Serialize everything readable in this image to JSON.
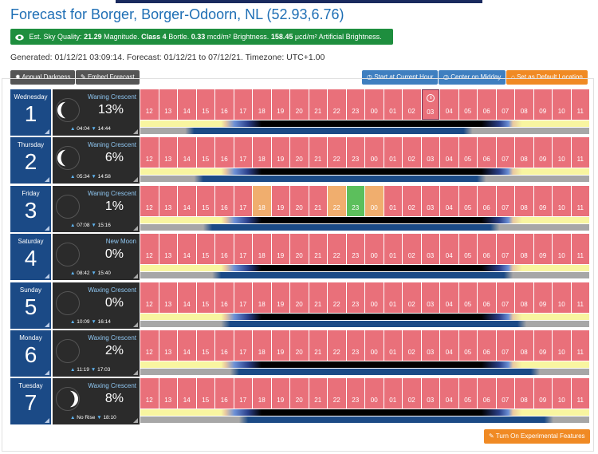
{
  "title": "Forecast for Borger, Borger-Odoorn, NL (52.93,6.76)",
  "sky_quality": {
    "icon": "eye-icon",
    "label": "Est. Sky Quality:",
    "magnitude_value": "21.29",
    "magnitude_unit": "Magnitude.",
    "bortle": "Class 4",
    "bortle_unit": "Bortle.",
    "brightness_value": "0.33",
    "brightness_unit": "mcd/m² Brightness.",
    "artificial_value": "158.45",
    "artificial_unit": "μcd/m² Artificial Brightness."
  },
  "generated": "Generated: 01/12/21 03:09:14. Forecast: 01/12/21 to 07/12/21. Timezone: UTC+1.00",
  "buttons": {
    "annual_darkness": "Annual Darkness",
    "embed_forecast": "Embed Forecast",
    "start_current_hour": "Start at Current Hour",
    "center_midday": "Center on Midday",
    "set_default": "Set as Default Location",
    "experimental": "Turn On Experimental Features"
  },
  "hours": [
    "12",
    "13",
    "14",
    "15",
    "16",
    "17",
    "18",
    "19",
    "20",
    "21",
    "22",
    "23",
    "00",
    "01",
    "02",
    "03",
    "04",
    "05",
    "06",
    "07",
    "08",
    "09",
    "10",
    "11"
  ],
  "current_hour_label": "03",
  "colors": {
    "bad": "#e9707a",
    "fair": "#f0ae6e",
    "good": "#5cbf5c",
    "date_bg": "#1b4a86",
    "moon_bg": "#2b2b2b",
    "title": "#1f6fb5"
  },
  "days": [
    {
      "name": "Wednesday",
      "num": "1",
      "phase": "Waning Crescent",
      "pct": "13%",
      "rise": "04:04",
      "set": "14:44",
      "moon_shape": "waning-crescent",
      "current_index": 15,
      "special": {}
    },
    {
      "name": "Thursday",
      "num": "2",
      "phase": "Waning Crescent",
      "pct": "6%",
      "rise": "05:34",
      "set": "14:58",
      "moon_shape": "waning-crescent",
      "current_index": -1,
      "special": {}
    },
    {
      "name": "Friday",
      "num": "3",
      "phase": "Waning Crescent",
      "pct": "1%",
      "rise": "07:08",
      "set": "15:16",
      "moon_shape": "new",
      "current_index": -1,
      "special": {
        "6": "orange",
        "10": "orange",
        "11": "green",
        "12": "orange"
      }
    },
    {
      "name": "Saturday",
      "num": "4",
      "phase": "New Moon",
      "pct": "0%",
      "rise": "08:42",
      "set": "15:40",
      "moon_shape": "new",
      "current_index": -1,
      "special": {}
    },
    {
      "name": "Sunday",
      "num": "5",
      "phase": "Waxing Crescent",
      "pct": "0%",
      "rise": "10:09",
      "set": "16:14",
      "moon_shape": "new",
      "current_index": -1,
      "special": {}
    },
    {
      "name": "Monday",
      "num": "6",
      "phase": "Waxing Crescent",
      "pct": "2%",
      "rise": "11:19",
      "set": "17:03",
      "moon_shape": "new",
      "current_index": -1,
      "special": {}
    },
    {
      "name": "Tuesday",
      "num": "7",
      "phase": "Waxing Crescent",
      "pct": "8%",
      "rise": "No Rise",
      "set": "18:10",
      "moon_shape": "waxing-crescent",
      "current_index": -1,
      "special": {}
    }
  ]
}
